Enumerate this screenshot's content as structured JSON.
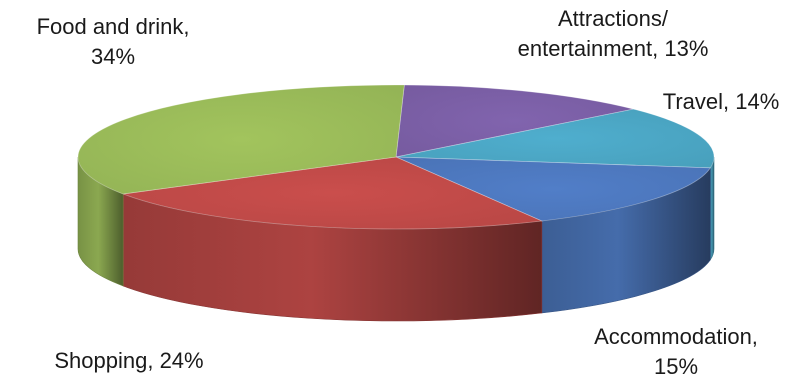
{
  "chart_data": {
    "type": "pie",
    "style": "3d",
    "title": "",
    "legend": "none",
    "slices": [
      {
        "label": "Attractions/ entertainment",
        "value": 13,
        "color": "#7B5FA6",
        "text_lines": [
          "Attractions/",
          "entertainment, 13%"
        ]
      },
      {
        "label": "Travel",
        "value": 14,
        "color": "#4BA6C4",
        "text_lines": [
          "Travel, 14%"
        ]
      },
      {
        "label": "Accommodation",
        "value": 15,
        "color": "#4D78BE",
        "text_lines": [
          "Accommodation,",
          "15%"
        ]
      },
      {
        "label": "Shopping",
        "value": 24,
        "color": "#C04A48",
        "text_lines": [
          "Shopping, 24%"
        ]
      },
      {
        "label": "Food and drink",
        "value": 34,
        "color": "#9ABB59",
        "text_lines": [
          "Food and drink,",
          "34%"
        ]
      }
    ]
  }
}
